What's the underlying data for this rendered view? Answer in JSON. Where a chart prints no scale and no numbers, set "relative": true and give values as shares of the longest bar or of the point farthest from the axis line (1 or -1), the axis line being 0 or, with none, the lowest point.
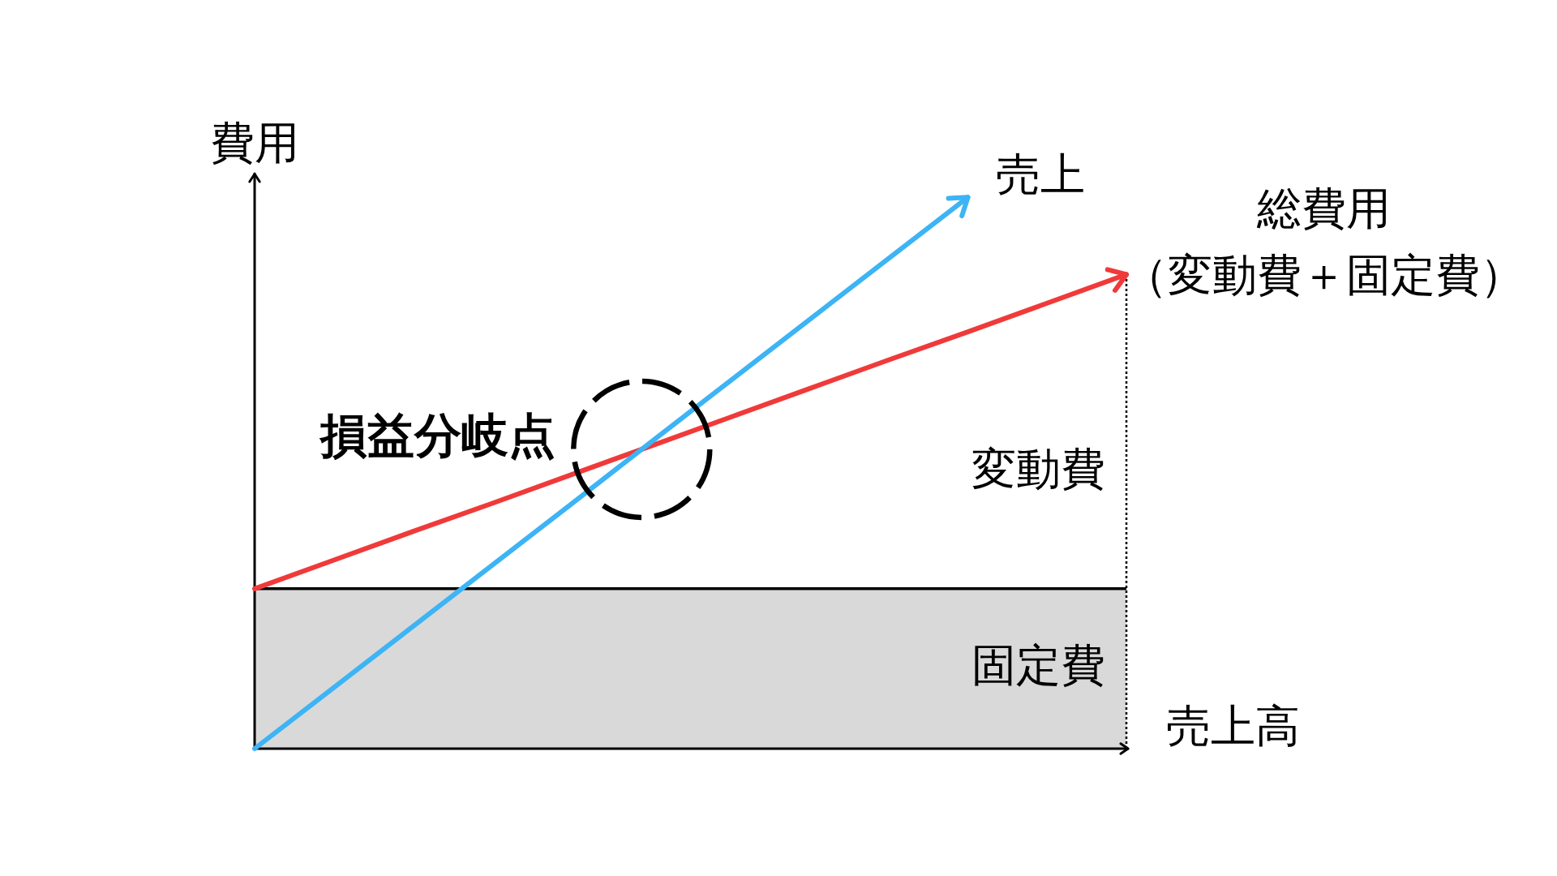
{
  "chart_data": {
    "type": "line",
    "relative": true,
    "xlabel": "売上高",
    "ylabel": "費用",
    "categories": [
      null,
      null,
      null,
      null,
      null,
      null,
      null,
      null,
      null,
      null,
      null,
      null
    ],
    "series": [
      {
        "name": "売上",
        "color": "#3cb4f5",
        "values": [
          0,
          0.111,
          0.222,
          0.333,
          0.444,
          0.556,
          0.667,
          0.778,
          0.889,
          1,
          null,
          null
        ]
      },
      {
        "name": "総費用（変動費＋固定費）",
        "color": "#f03a3a",
        "values": [
          0.29,
          0.342,
          0.394,
          0.445,
          0.497,
          0.549,
          0.601,
          0.653,
          0.705,
          0.756,
          0.808,
          0.86
        ]
      }
    ],
    "bands": [
      {
        "axis": "y",
        "from": 0,
        "to": 0.29,
        "label": "固定費",
        "color": "#d9d9d9"
      }
    ],
    "ref_lines": [
      {
        "axis": "y",
        "value": 0.29,
        "color": "#000000"
      }
    ],
    "annotations": [
      "損益分岐点",
      "変動費"
    ],
    "legend": false,
    "grid": false,
    "marker": "none",
    "tick_labels": false
  }
}
